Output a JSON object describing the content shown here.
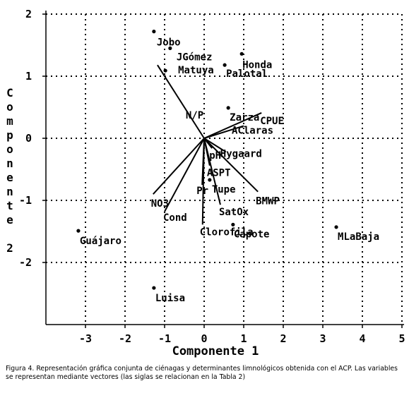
{
  "chart_data": {
    "type": "biplot",
    "xlabel": "Componente 1",
    "ylabel": "Componente 2",
    "xlim": [
      -4,
      5
    ],
    "ylim": [
      -3,
      2
    ],
    "xticks": [
      -3,
      -2,
      -1,
      0,
      1,
      2,
      3,
      4,
      5
    ],
    "yticks": [
      -2,
      -1,
      0,
      1,
      2
    ],
    "grid": true,
    "color": "#000000",
    "points": {
      "labels": [
        "Jobo",
        "JGómez",
        "Matuya",
        "Honda",
        "Palotal",
        "Zarza",
        "Guájaro",
        "MLaBaja",
        "Capote",
        "Luisa",
        "Tupe"
      ],
      "x": [
        -1.27,
        -0.86,
        -0.98,
        0.95,
        0.52,
        0.61,
        -3.18,
        3.34,
        0.73,
        -1.27,
        0.14
      ],
      "y": [
        1.72,
        1.45,
        1.09,
        1.36,
        1.18,
        0.49,
        -1.49,
        -1.43,
        -1.39,
        -2.41,
        -0.67
      ]
    },
    "vectors": {
      "labels": [
        "N/P",
        "CPUE",
        "AClaras",
        "pH",
        "Hygaard",
        "ASPT",
        "Pr",
        "BMWP",
        "SatOx",
        "Clorofila",
        "NO3",
        "Cond"
      ],
      "x": [
        -1.18,
        1.45,
        1.0,
        0.2,
        0.55,
        0.14,
        -0.05,
        1.36,
        0.41,
        -0.04,
        -1.29,
        -1.0
      ],
      "y": [
        1.18,
        0.41,
        0.2,
        -0.16,
        -0.22,
        -0.44,
        -0.75,
        -0.86,
        -1.07,
        -1.39,
        -0.9,
        -1.18
      ]
    }
  },
  "caption": "Figura 4. Representación gráfica conjunta de ciénagas y determinantes limnológicos obtenida con el ACP. Las variables se representan mediante vectores (las siglas se relacionan en la Tabla 2)"
}
